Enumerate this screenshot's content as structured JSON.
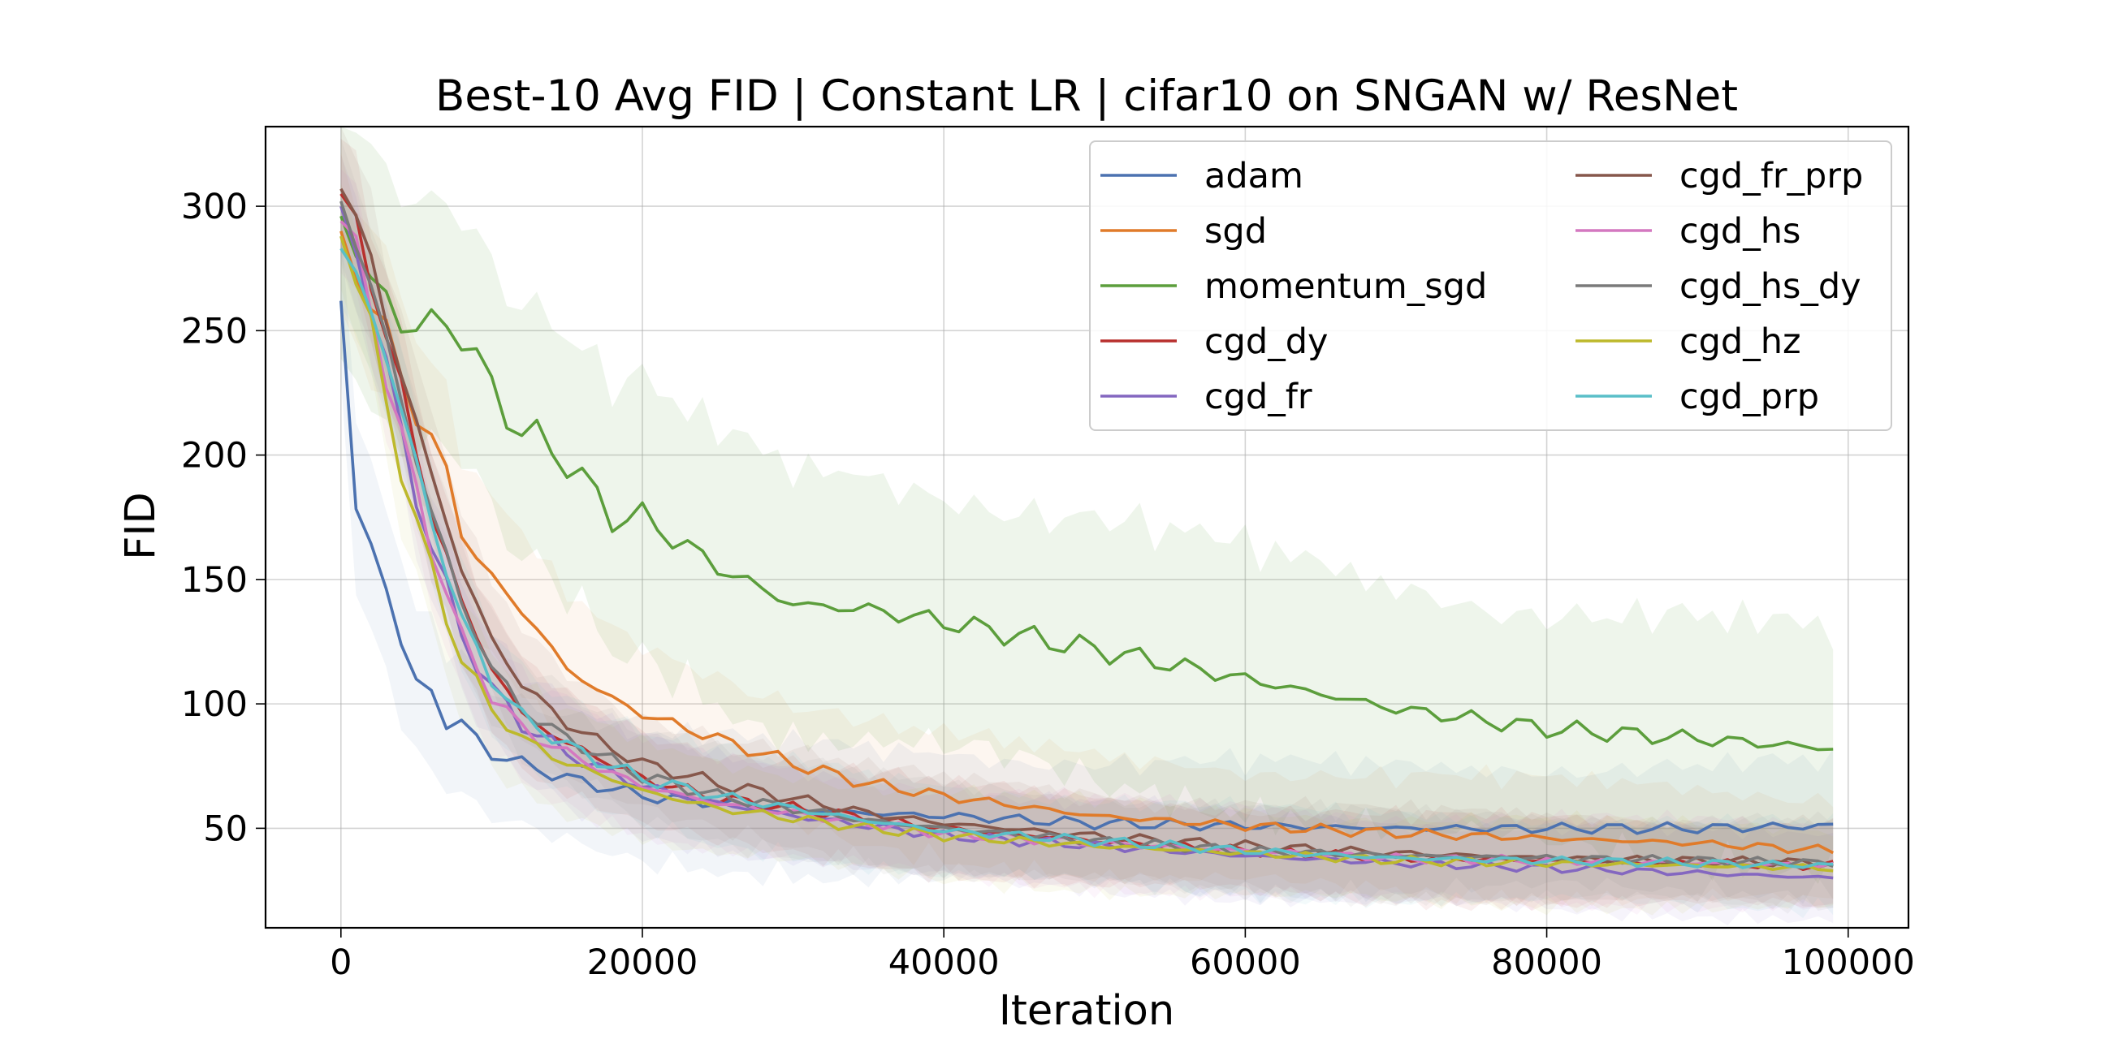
{
  "chart_data": {
    "type": "line",
    "title": "Best-10 Avg FID | Constant LR | cifar10 on SNGAN w/ ResNet",
    "xlabel": "Iteration",
    "ylabel": "FID",
    "xlim": [
      -5000,
      104000
    ],
    "ylim": [
      10,
      332
    ],
    "xticks": [
      0,
      20000,
      40000,
      60000,
      80000,
      100000
    ],
    "xtick_labels": [
      "0",
      "20000",
      "40000",
      "60000",
      "80000",
      "100000"
    ],
    "yticks": [
      50,
      100,
      150,
      200,
      250,
      300
    ],
    "ytick_labels": [
      "50",
      "100",
      "150",
      "200",
      "250",
      "300"
    ],
    "grid": true,
    "legend_position": "top-right",
    "legend_columns": 2,
    "x_anchor_iterations": [
      0,
      1000,
      2000,
      3000,
      4000,
      5000,
      6000,
      7000,
      8000,
      10000,
      12000,
      15000,
      18000,
      20000,
      25000,
      30000,
      35000,
      40000,
      50000,
      60000,
      70000,
      80000,
      90000,
      99000
    ],
    "series": [
      {
        "name": "adam",
        "color": "#4c72b0",
        "band": 28,
        "values": [
          262,
          177,
          164,
          148,
          124,
          108,
          106,
          92,
          92,
          80,
          76,
          70,
          66,
          63,
          60,
          58,
          56,
          55,
          52,
          51,
          50,
          50,
          50,
          51
        ]
      },
      {
        "name": "sgd",
        "color": "#e07b2a",
        "band": 26,
        "values": [
          290,
          278,
          262,
          247,
          232,
          218,
          206,
          192,
          170,
          150,
          138,
          114,
          102,
          96,
          86,
          76,
          68,
          63,
          55,
          51,
          48,
          46,
          44,
          41
        ]
      },
      {
        "name": "momentum_sgd",
        "color": "#5c9e3c",
        "band": 46,
        "values": [
          296,
          284,
          268,
          262,
          255,
          252,
          251,
          253,
          250,
          226,
          210,
          198,
          175,
          175,
          155,
          140,
          138,
          133,
          122,
          110,
          98,
          90,
          86,
          82
        ]
      },
      {
        "name": "cgd_dy",
        "color": "#b8302e",
        "band": 20,
        "values": [
          305,
          290,
          272,
          250,
          226,
          200,
          178,
          160,
          140,
          115,
          96,
          84,
          76,
          70,
          62,
          58,
          54,
          50,
          45,
          41,
          38,
          37,
          36,
          35
        ]
      },
      {
        "name": "cgd_fr",
        "color": "#8467c0",
        "band": 20,
        "values": [
          300,
          282,
          262,
          236,
          208,
          184,
          164,
          146,
          128,
          106,
          92,
          80,
          72,
          67,
          60,
          55,
          51,
          47,
          43,
          39,
          36,
          34,
          32,
          30
        ]
      },
      {
        "name": "cgd_fr_prp",
        "color": "#86574b",
        "band": 20,
        "values": [
          307,
          294,
          276,
          256,
          234,
          212,
          192,
          174,
          154,
          126,
          108,
          92,
          82,
          76,
          68,
          62,
          56,
          52,
          47,
          43,
          40,
          38,
          37,
          36
        ]
      },
      {
        "name": "cgd_hs",
        "color": "#d478c0",
        "band": 20,
        "values": [
          294,
          280,
          258,
          234,
          208,
          184,
          164,
          146,
          126,
          104,
          90,
          80,
          72,
          67,
          60,
          56,
          52,
          48,
          44,
          41,
          38,
          37,
          36,
          35
        ]
      },
      {
        "name": "cgd_hs_dy",
        "color": "#7a7a7a",
        "band": 20,
        "values": [
          302,
          287,
          268,
          246,
          222,
          198,
          178,
          160,
          140,
          115,
          98,
          86,
          77,
          71,
          63,
          58,
          53,
          50,
          45,
          41,
          39,
          38,
          37,
          36
        ]
      },
      {
        "name": "cgd_hz",
        "color": "#bdb92c",
        "band": 20,
        "values": [
          288,
          272,
          248,
          222,
          196,
          172,
          154,
          136,
          118,
          98,
          86,
          76,
          70,
          65,
          58,
          54,
          50,
          47,
          43,
          40,
          37,
          36,
          35,
          34
        ]
      },
      {
        "name": "cgd_prp",
        "color": "#5abfc8",
        "band": 20,
        "values": [
          283,
          272,
          258,
          240,
          218,
          196,
          174,
          154,
          134,
          110,
          95,
          83,
          75,
          70,
          63,
          58,
          53,
          49,
          45,
          41,
          38,
          37,
          36,
          35
        ]
      }
    ]
  }
}
